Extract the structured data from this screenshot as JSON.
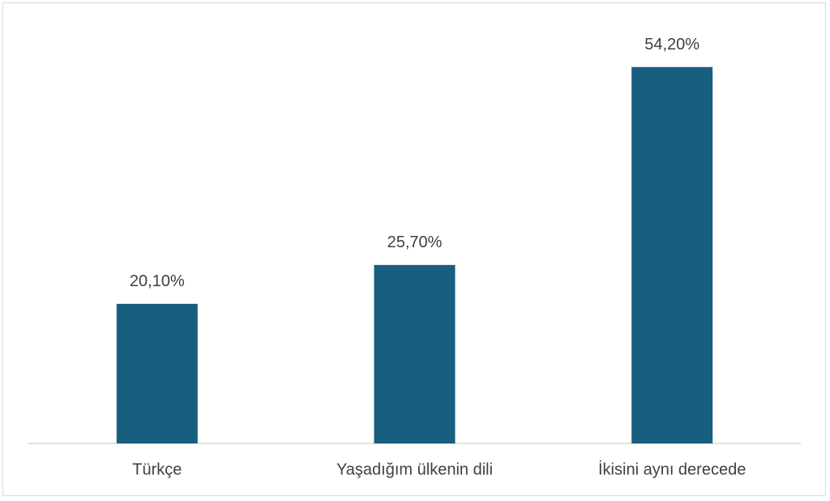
{
  "chart_data": {
    "type": "bar",
    "categories": [
      "Türkçe",
      "Yaşadığım ülkenin dili",
      "İkisini aynı derecede"
    ],
    "values": [
      20.1,
      25.7,
      54.2
    ],
    "value_labels": [
      "20,10%",
      "25,70%",
      "54,20%"
    ],
    "color": "#175e7f",
    "ylim": [
      0,
      60
    ]
  }
}
